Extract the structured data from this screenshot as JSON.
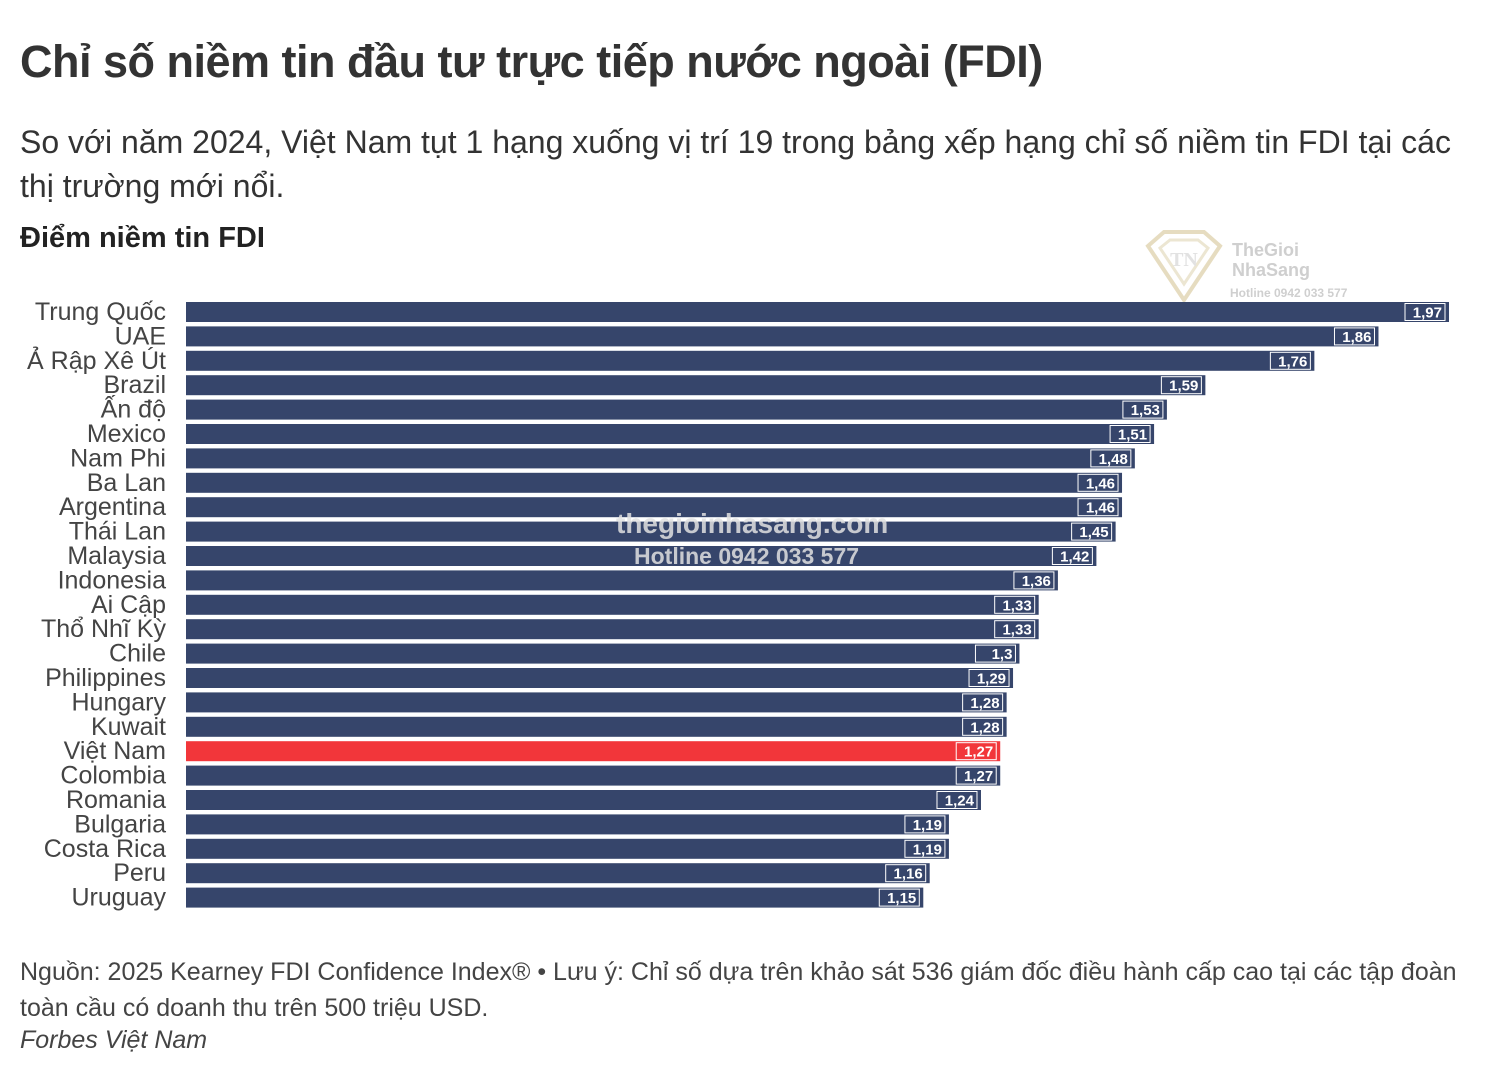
{
  "title": "Chỉ số niềm tin đầu tư trực tiếp nước ngoài (FDI)",
  "subtitle": "So với năm 2024, Việt Nam tụt 1 hạng xuống vị trí 19 trong bảng xếp hạng chỉ số niềm tin FDI tại các thị trường mới nổi.",
  "axis_title": "Điểm niềm tin FDI",
  "watermark": {
    "brand_line1": "TheGioi",
    "brand_line2": "NhaSang",
    "hotline_small": "Hotline 0942 033 577",
    "site": "thegioinhasang.com",
    "hotline": "Hotline 0942 033 577"
  },
  "footer": {
    "note": "Nguồn: 2025 Kearney FDI Confidence Index® • Lưu ý: Chỉ số dựa trên khảo sát 536 giám đốc điều hành cấp cao tại các tập đoàn toàn cầu có doanh thu trên 500 triệu USD.",
    "brand": "Forbes Việt Nam"
  },
  "colors": {
    "bar": "#36456b",
    "highlight": "#f2363a",
    "label_bg": "#36456b",
    "label_text": "#ffffff"
  },
  "chart_data": {
    "type": "bar",
    "orientation": "horizontal",
    "categories": [
      "Trung Quốc",
      "UAE",
      "Ả Rập Xê Út",
      "Brazil",
      "Ấn độ",
      "Mexico",
      "Nam Phi",
      "Ba Lan",
      "Argentina",
      "Thái Lan",
      "Malaysia",
      "Indonesia",
      "Ai Cập",
      "Thổ Nhĩ Kỳ",
      "Chile",
      "Philippines",
      "Hungary",
      "Kuwait",
      "Việt Nam",
      "Colombia",
      "Romania",
      "Bulgaria",
      "Costa Rica",
      "Peru",
      "Uruguay"
    ],
    "values": [
      1.97,
      1.86,
      1.76,
      1.59,
      1.53,
      1.51,
      1.48,
      1.46,
      1.46,
      1.45,
      1.42,
      1.36,
      1.33,
      1.33,
      1.3,
      1.29,
      1.28,
      1.28,
      1.27,
      1.27,
      1.24,
      1.19,
      1.19,
      1.16,
      1.15
    ],
    "value_labels": [
      "1,97",
      "1,86",
      "1,76",
      "1,59",
      "1,53",
      "1,51",
      "1,48",
      "1,46",
      "1,46",
      "1,45",
      "1,42",
      "1,36",
      "1,33",
      "1,33",
      "1,3",
      "1,29",
      "1,28",
      "1,28",
      "1,27",
      "1,27",
      "1,24",
      "1,19",
      "1,19",
      "1,16",
      "1,15"
    ],
    "highlight_category": "Việt Nam",
    "ylabel": "Điểm niềm tin FDI",
    "xlim": [
      0,
      1.97
    ],
    "grid": false,
    "legend": "none"
  }
}
